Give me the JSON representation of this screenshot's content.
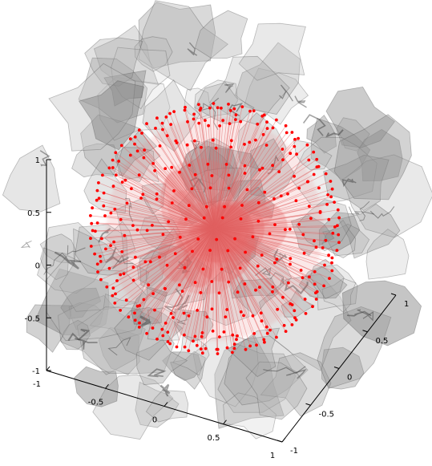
{
  "chart_data": {
    "type": "scatter",
    "subtype": "3d-scatter-with-radial-lines",
    "title": "",
    "xlabel": "",
    "ylabel": "",
    "zlabel": "",
    "xlim": [
      -1,
      1
    ],
    "ylim": [
      -1,
      1
    ],
    "zlim": [
      -1,
      1
    ],
    "x_ticks": [
      "-1",
      "-0.5",
      "0",
      "0.5",
      "1"
    ],
    "y_ticks": [
      "-1",
      "-0.5",
      "0",
      "0.5",
      "1"
    ],
    "z_ticks": [
      "-1",
      "-0.5",
      "0",
      "0.5",
      "1"
    ],
    "grid": false,
    "legend": "none",
    "points_description": {
      "shape": "unit sphere sampled on latitude rings",
      "radius": 0.78,
      "rings_latitude_deg": [
        -80,
        -65,
        -50,
        -35,
        -20,
        -6,
        6,
        20,
        35,
        50,
        65,
        80
      ],
      "points_per_ring": [
        12,
        22,
        30,
        36,
        40,
        42,
        42,
        40,
        36,
        30,
        22,
        12
      ],
      "connected_to_origin": true
    },
    "colors": {
      "points": "#ff0000",
      "lines": "#e06060",
      "inner_blob": "#e87070",
      "surface_fill": "#9a9a9a",
      "surface_edge": "#555555"
    }
  }
}
